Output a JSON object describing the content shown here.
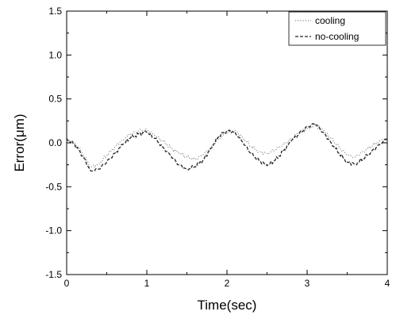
{
  "chart_data": {
    "type": "line",
    "title": "",
    "xlabel": "Time(sec)",
    "ylabel": "Error(μm)",
    "xlim": [
      0,
      4
    ],
    "ylim": [
      -1.5,
      1.5
    ],
    "x_ticks": [
      0,
      1,
      2,
      3,
      4
    ],
    "x_tick_labels": [
      "0",
      "1",
      "2",
      "3",
      "4"
    ],
    "y_ticks": [
      1.5,
      1.0,
      0.5,
      0.0,
      -0.5,
      -1.0,
      -1.5
    ],
    "y_tick_labels": [
      "1.5",
      "1.0",
      "0.5",
      "0.0",
      "-0.5",
      "-1.0",
      "-1.5"
    ],
    "grid": false,
    "legend_position": "top-right",
    "series": [
      {
        "name": "cooling",
        "color": "#888888",
        "line_style": "dotted",
        "x": [
          0.0,
          0.1,
          0.2,
          0.3,
          0.4,
          0.5,
          0.6,
          0.7,
          0.8,
          0.9,
          1.0,
          1.1,
          1.2,
          1.3,
          1.4,
          1.5,
          1.6,
          1.7,
          1.8,
          1.9,
          2.0,
          2.1,
          2.2,
          2.3,
          2.4,
          2.5,
          2.6,
          2.7,
          2.8,
          2.9,
          3.0,
          3.1,
          3.2,
          3.3,
          3.4,
          3.5,
          3.6,
          3.7,
          3.8,
          3.9,
          4.0
        ],
        "y": [
          0.03,
          0.0,
          -0.12,
          -0.28,
          -0.24,
          -0.14,
          -0.05,
          0.04,
          0.1,
          0.14,
          0.15,
          0.08,
          0.02,
          -0.06,
          -0.12,
          -0.16,
          -0.19,
          -0.14,
          -0.05,
          0.05,
          0.12,
          0.14,
          0.06,
          -0.04,
          -0.1,
          -0.12,
          -0.08,
          -0.02,
          0.04,
          0.12,
          0.16,
          0.2,
          0.14,
          0.05,
          -0.05,
          -0.14,
          -0.16,
          -0.1,
          -0.04,
          0.02,
          0.05
        ]
      },
      {
        "name": "no-cooling",
        "color": "#222222",
        "line_style": "dashed",
        "x": [
          0.0,
          0.1,
          0.2,
          0.3,
          0.4,
          0.5,
          0.6,
          0.7,
          0.8,
          0.9,
          1.0,
          1.1,
          1.2,
          1.3,
          1.4,
          1.5,
          1.6,
          1.7,
          1.8,
          1.9,
          2.0,
          2.1,
          2.2,
          2.3,
          2.4,
          2.5,
          2.6,
          2.7,
          2.8,
          2.9,
          3.0,
          3.1,
          3.2,
          3.3,
          3.4,
          3.5,
          3.6,
          3.7,
          3.8,
          3.9,
          4.0
        ],
        "y": [
          0.05,
          -0.02,
          -0.15,
          -0.32,
          -0.3,
          -0.22,
          -0.12,
          -0.02,
          0.06,
          0.1,
          0.12,
          0.05,
          -0.05,
          -0.15,
          -0.25,
          -0.3,
          -0.27,
          -0.2,
          -0.06,
          0.08,
          0.14,
          0.12,
          0.0,
          -0.12,
          -0.2,
          -0.26,
          -0.2,
          -0.1,
          0.02,
          0.1,
          0.18,
          0.22,
          0.12,
          0.0,
          -0.12,
          -0.22,
          -0.24,
          -0.18,
          -0.1,
          -0.02,
          0.05
        ]
      }
    ]
  }
}
